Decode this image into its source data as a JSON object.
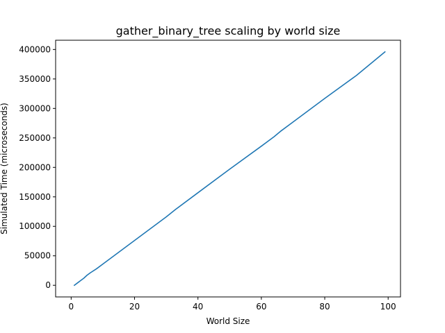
{
  "chart_data": {
    "type": "line",
    "title": "gather_binary_tree scaling by world size",
    "xlabel": "World Size",
    "ylabel": "Simulated Time (microseconds)",
    "xlim": [
      -4.9,
      103.9
    ],
    "ylim": [
      -19750,
      415700
    ],
    "xticks": [
      0,
      20,
      40,
      60,
      80,
      100
    ],
    "yticks": [
      0,
      50000,
      100000,
      150000,
      200000,
      250000,
      300000,
      350000,
      400000
    ],
    "grid": false,
    "line_color": "#1f77b4",
    "series": [
      {
        "x": [
          1,
          2,
          3,
          4,
          5,
          6,
          8,
          10,
          15,
          20,
          30,
          33,
          40,
          50,
          60,
          64,
          66,
          70,
          80,
          90,
          99
        ],
        "values": [
          0,
          4000,
          8000,
          12000,
          17000,
          21000,
          28000,
          36000,
          56000,
          76000,
          116000,
          129000,
          157000,
          197000,
          236000,
          252000,
          261000,
          277000,
          317000,
          356000,
          396000
        ]
      }
    ]
  }
}
